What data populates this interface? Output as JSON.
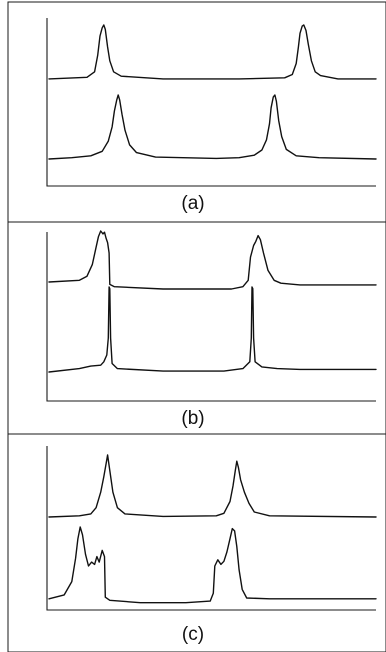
{
  "chart_data": [
    {
      "type": "line",
      "title": "",
      "xlabel": "",
      "ylabel": "",
      "panel_label": "(a)",
      "axis_ticks": false,
      "grid": false,
      "legend": "none",
      "series": [
        {
          "points": [
            [
              0,
              0.02
            ],
            [
              50,
              0.05
            ],
            [
              60,
              0.15
            ],
            [
              64,
              0.45
            ],
            [
              67,
              0.8
            ],
            [
              70,
              0.95
            ],
            [
              72,
              1.0
            ],
            [
              74,
              0.92
            ],
            [
              77,
              0.6
            ],
            [
              80,
              0.35
            ],
            [
              85,
              0.15
            ],
            [
              95,
              0.07
            ],
            [
              150,
              0.02
            ],
            [
              250,
              0.02
            ],
            [
              310,
              0.04
            ],
            [
              320,
              0.1
            ],
            [
              325,
              0.3
            ],
            [
              328,
              0.6
            ],
            [
              330,
              0.85
            ],
            [
              333,
              0.98
            ],
            [
              335,
              1.0
            ],
            [
              338,
              0.9
            ],
            [
              341,
              0.65
            ],
            [
              345,
              0.35
            ],
            [
              350,
              0.15
            ],
            [
              357,
              0.08
            ],
            [
              380,
              0.02
            ],
            [
              430,
              0.02
            ]
          ]
        },
        {
          "points": [
            [
              0,
              0.0
            ],
            [
              30,
              0.02
            ],
            [
              55,
              0.05
            ],
            [
              70,
              0.12
            ],
            [
              78,
              0.28
            ],
            [
              83,
              0.5
            ],
            [
              86,
              0.75
            ],
            [
              89,
              0.92
            ],
            [
              91,
              1.0
            ],
            [
              93,
              0.92
            ],
            [
              96,
              0.7
            ],
            [
              100,
              0.45
            ],
            [
              106,
              0.22
            ],
            [
              115,
              0.1
            ],
            [
              140,
              0.03
            ],
            [
              220,
              0.01
            ],
            [
              250,
              0.02
            ],
            [
              270,
              0.06
            ],
            [
              280,
              0.14
            ],
            [
              286,
              0.3
            ],
            [
              290,
              0.55
            ],
            [
              292,
              0.8
            ],
            [
              295,
              0.97
            ],
            [
              297,
              1.0
            ],
            [
              299,
              0.9
            ],
            [
              302,
              0.6
            ],
            [
              306,
              0.35
            ],
            [
              312,
              0.15
            ],
            [
              325,
              0.05
            ],
            [
              355,
              0.02
            ],
            [
              430,
              0.0
            ]
          ]
        }
      ]
    },
    {
      "type": "line",
      "title": "",
      "xlabel": "",
      "ylabel": "",
      "panel_label": "(b)",
      "axis_ticks": false,
      "grid": false,
      "legend": "none",
      "series": [
        {
          "points": [
            [
              0,
              0.12
            ],
            [
              40,
              0.15
            ],
            [
              50,
              0.22
            ],
            [
              57,
              0.42
            ],
            [
              62,
              0.72
            ],
            [
              65,
              0.9
            ],
            [
              68,
              1.0
            ],
            [
              71,
              0.95
            ],
            [
              73,
              0.98
            ],
            [
              75,
              0.88
            ],
            [
              77,
              0.8
            ],
            [
              79,
              0.62
            ],
            [
              80,
              0.08
            ],
            [
              86,
              0.04
            ],
            [
              150,
              0.0
            ],
            [
              240,
              0.0
            ],
            [
              255,
              0.04
            ],
            [
              262,
              0.15
            ],
            [
              265,
              0.55
            ],
            [
              269,
              0.75
            ],
            [
              272,
              0.82
            ],
            [
              275,
              0.92
            ],
            [
              278,
              0.85
            ],
            [
              282,
              0.62
            ],
            [
              288,
              0.32
            ],
            [
              296,
              0.15
            ],
            [
              305,
              0.1
            ],
            [
              330,
              0.07
            ],
            [
              430,
              0.07
            ]
          ]
        },
        {
          "points": [
            [
              0,
              0.0
            ],
            [
              40,
              0.04
            ],
            [
              55,
              0.07
            ],
            [
              68,
              0.08
            ],
            [
              72,
              0.12
            ],
            [
              76,
              0.2
            ],
            [
              78,
              0.4
            ],
            [
              79,
              1.0
            ],
            [
              80,
              0.98
            ],
            [
              81,
              0.4
            ],
            [
              83,
              0.1
            ],
            [
              90,
              0.04
            ],
            [
              150,
              0.01
            ],
            [
              230,
              0.01
            ],
            [
              255,
              0.04
            ],
            [
              264,
              0.12
            ],
            [
              266,
              0.4
            ],
            [
              267,
              1.0
            ],
            [
              268,
              0.98
            ],
            [
              269,
              0.4
            ],
            [
              271,
              0.12
            ],
            [
              280,
              0.06
            ],
            [
              300,
              0.04
            ],
            [
              330,
              0.03
            ],
            [
              430,
              0.03
            ]
          ]
        }
      ]
    },
    {
      "type": "line",
      "title": "",
      "xlabel": "",
      "ylabel": "",
      "panel_label": "(c)",
      "axis_ticks": false,
      "grid": false,
      "legend": "none",
      "series": [
        {
          "points": [
            [
              0,
              0.0
            ],
            [
              40,
              0.02
            ],
            [
              55,
              0.05
            ],
            [
              62,
              0.15
            ],
            [
              68,
              0.4
            ],
            [
              72,
              0.65
            ],
            [
              75,
              0.85
            ],
            [
              77,
              1.0
            ],
            [
              80,
              0.75
            ],
            [
              84,
              0.4
            ],
            [
              90,
              0.15
            ],
            [
              100,
              0.05
            ],
            [
              150,
              0.01
            ],
            [
              220,
              0.02
            ],
            [
              230,
              0.06
            ],
            [
              238,
              0.25
            ],
            [
              242,
              0.5
            ],
            [
              245,
              0.75
            ],
            [
              247,
              0.9
            ],
            [
              249,
              0.8
            ],
            [
              252,
              0.6
            ],
            [
              257,
              0.4
            ],
            [
              263,
              0.22
            ],
            [
              270,
              0.08
            ],
            [
              290,
              0.02
            ],
            [
              430,
              0.0
            ]
          ]
        },
        {
          "points": [
            [
              0,
              0.08
            ],
            [
              20,
              0.13
            ],
            [
              30,
              0.3
            ],
            [
              35,
              0.6
            ],
            [
              38,
              0.85
            ],
            [
              41,
              1.0
            ],
            [
              44,
              0.9
            ],
            [
              48,
              0.65
            ],
            [
              52,
              0.5
            ],
            [
              56,
              0.55
            ],
            [
              60,
              0.52
            ],
            [
              63,
              0.62
            ],
            [
              66,
              0.55
            ],
            [
              70,
              0.7
            ],
            [
              73,
              0.62
            ],
            [
              74,
              0.1
            ],
            [
              80,
              0.06
            ],
            [
              120,
              0.03
            ],
            [
              180,
              0.03
            ],
            [
              212,
              0.05
            ],
            [
              216,
              0.15
            ],
            [
              218,
              0.5
            ],
            [
              222,
              0.58
            ],
            [
              226,
              0.52
            ],
            [
              230,
              0.56
            ],
            [
              234,
              0.68
            ],
            [
              238,
              0.85
            ],
            [
              241,
              0.98
            ],
            [
              244,
              0.95
            ],
            [
              247,
              0.75
            ],
            [
              250,
              0.45
            ],
            [
              254,
              0.2
            ],
            [
              260,
              0.09
            ],
            [
              290,
              0.08
            ],
            [
              430,
              0.08
            ]
          ]
        }
      ]
    }
  ]
}
